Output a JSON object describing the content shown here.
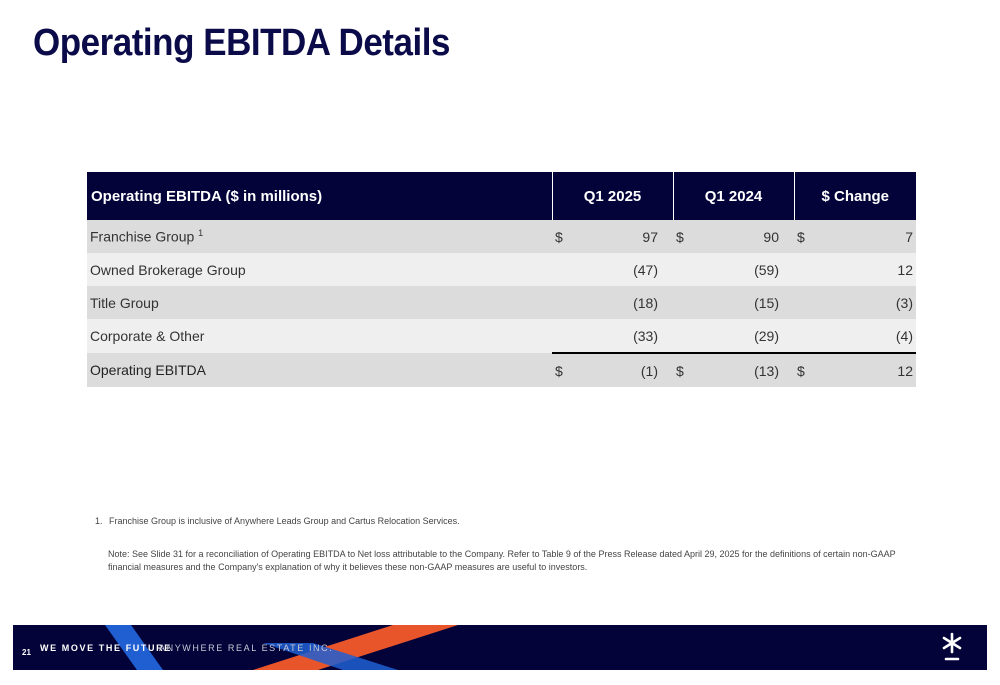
{
  "title": "Operating EBITDA Details",
  "table": {
    "headers": [
      "Operating EBITDA ($ in millions)",
      "Q1 2025",
      "Q1 2024",
      "$ Change"
    ],
    "rows": [
      {
        "label": "Franchise Group",
        "footnote_ref": "1",
        "cur1": "$",
        "q1_2025": "97",
        "cur2": "$",
        "q1_2024": "90",
        "cur3": "$",
        "change": "7"
      },
      {
        "label": "Owned Brokerage Group",
        "cur1": "",
        "q1_2025": "(47)",
        "cur2": "",
        "q1_2024": "(59)",
        "cur3": "",
        "change": "12"
      },
      {
        "label": "Title Group",
        "cur1": "",
        "q1_2025": "(18)",
        "cur2": "",
        "q1_2024": "(15)",
        "cur3": "",
        "change": "(3)"
      },
      {
        "label": "Corporate & Other",
        "cur1": "",
        "q1_2025": "(33)",
        "cur2": "",
        "q1_2024": "(29)",
        "cur3": "",
        "change": "(4)"
      },
      {
        "label": "Operating EBITDA",
        "cur1": "$",
        "q1_2025": "(1)",
        "cur2": "$",
        "q1_2024": "(13)",
        "cur3": "$",
        "change": "12"
      }
    ]
  },
  "footnote": {
    "number": "1.",
    "text": "Franchise Group is inclusive of Anywhere Leads Group and Cartus Relocation Services."
  },
  "note": "Note:  See Slide 31 for a reconciliation of Operating EBITDA to Net loss attributable to the Company. Refer to Table 9 of the Press Release dated April 29, 2025 for the definitions of certain non-GAAP financial measures and the Company's explanation of why it believes these non-GAAP measures are useful to investors.",
  "footer": {
    "page_number": "21",
    "tagline": "WE MOVE THE FUTURE",
    "company": "ANYWHERE REAL ESTATE INC.",
    "logo_icon": "asterisk-logo-icon",
    "colors": {
      "navy": "#03033a",
      "blue": "#1f5fd1",
      "orange": "#e8552a"
    }
  }
}
